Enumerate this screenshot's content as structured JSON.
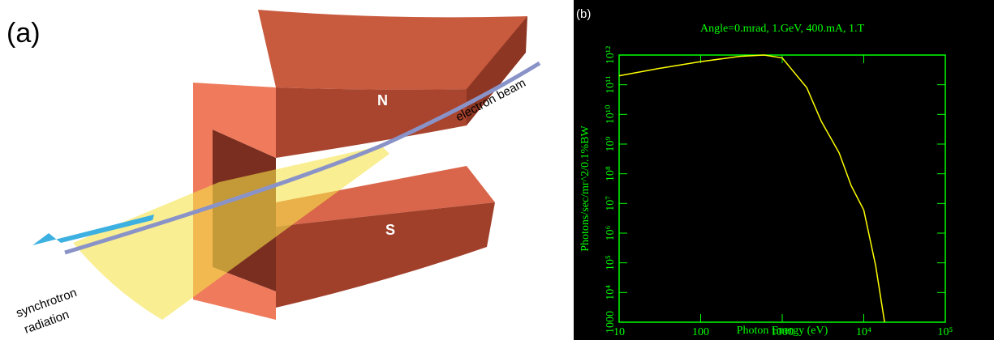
{
  "panel_a": {
    "label": "(a)",
    "north": "N",
    "south": "S",
    "beam": "electron beam",
    "radiation": [
      "synchrotron",
      "radiation"
    ]
  },
  "chart_data": {
    "type": "line",
    "panel_label": "(b)",
    "title": "Angle=0.mrad, 1.GeV, 400.mA, 1.T",
    "x_label": "Photon Energy (eV)",
    "y_label": "Photons/sec/mr^2/0.1%BW",
    "x": [
      10,
      30,
      100,
      300,
      600,
      1000,
      2000,
      3000,
      5000,
      7000,
      10000,
      14000,
      18000
    ],
    "values": [
      200000000000,
      350000000000,
      600000000000,
      900000000000,
      1000000000000,
      800000000000,
      80000000000,
      6000000000,
      500000000,
      40000000,
      6000000,
      80000,
      1000
    ],
    "color": "#ffff00",
    "axis_color": "#00ff00",
    "background": "#000000",
    "x_log": true,
    "y_log": true,
    "xlim": [
      10,
      100000
    ],
    "ylim": [
      1000,
      1000000000000
    ],
    "xticks": [
      10,
      100,
      1000,
      {
        "value": 10000,
        "label": "10⁴"
      },
      {
        "value": 100000,
        "label": "10⁵"
      }
    ],
    "yticks": [
      1000,
      {
        "value": 10000,
        "label": "10⁴"
      },
      {
        "value": 100000,
        "label": "10⁵"
      },
      {
        "value": 1000000,
        "label": "10⁶"
      },
      {
        "value": 10000000,
        "label": "10⁷"
      },
      {
        "value": 100000000,
        "label": "10⁸"
      },
      {
        "value": 1000000000,
        "label": "10⁹"
      },
      {
        "value": 10000000000,
        "label": "10¹⁰"
      },
      {
        "value": 100000000000,
        "label": "10¹¹"
      },
      {
        "value": 1000000000000,
        "label": "10¹²"
      }
    ]
  }
}
